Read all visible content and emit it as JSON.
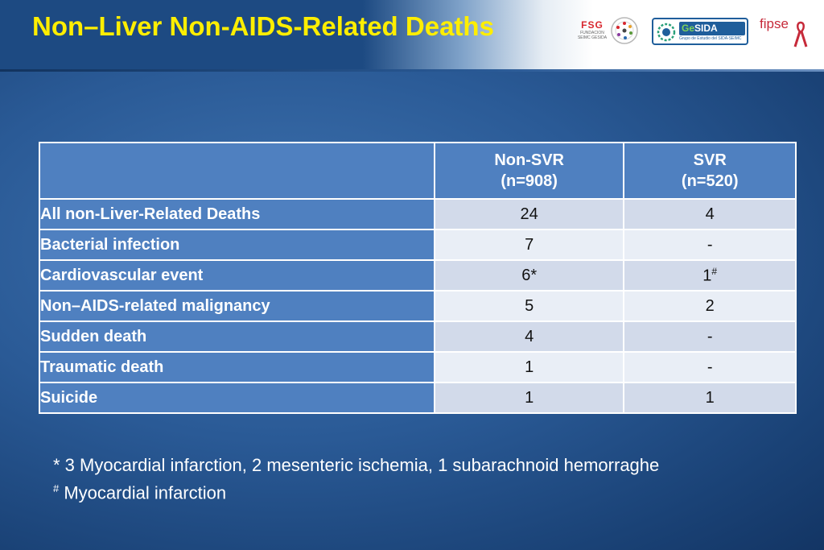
{
  "header": {
    "title": "Non–Liver Non-AIDS-Related Deaths",
    "logos": [
      {
        "name": "fsg-logo",
        "text": "FSG",
        "subtext": "FUNDACION SEIMC GESIDA"
      },
      {
        "name": "gesida-logo",
        "text_prefix": "Ge",
        "text_suffix": "SIDA",
        "subtext": "Grupo de Estudio del SIDA-SEIMC"
      },
      {
        "name": "fipse-logo",
        "text": "fipse"
      }
    ]
  },
  "table": {
    "columns": [
      {
        "line1": "",
        "line2": ""
      },
      {
        "line1": "Non-SVR",
        "line2": "(n=908)"
      },
      {
        "line1": "SVR",
        "line2": "(n=520)"
      }
    ],
    "rows": [
      {
        "label": "All non-Liver-Related Deaths",
        "non_svr": "24",
        "svr": "4"
      },
      {
        "label": "Bacterial infection",
        "non_svr": "7",
        "svr": "-"
      },
      {
        "label": "Cardiovascular event",
        "non_svr": "6*",
        "svr": "1",
        "svr_sup": "#"
      },
      {
        "label": "Non–AIDS-related malignancy",
        "non_svr": "5",
        "svr": "2"
      },
      {
        "label": "Sudden death",
        "non_svr": "4",
        "svr": "-"
      },
      {
        "label": "Traumatic death",
        "non_svr": "1",
        "svr": "-"
      },
      {
        "label": "Suicide",
        "non_svr": "1",
        "svr": "1"
      }
    ]
  },
  "footnotes": [
    {
      "marker": "*",
      "text": " 3 Myocardial infarction, 2 mesenteric ischemia, 1 subarachnoid hemorraghe"
    },
    {
      "marker": "#",
      "text": " Myocardial infarction"
    }
  ]
}
